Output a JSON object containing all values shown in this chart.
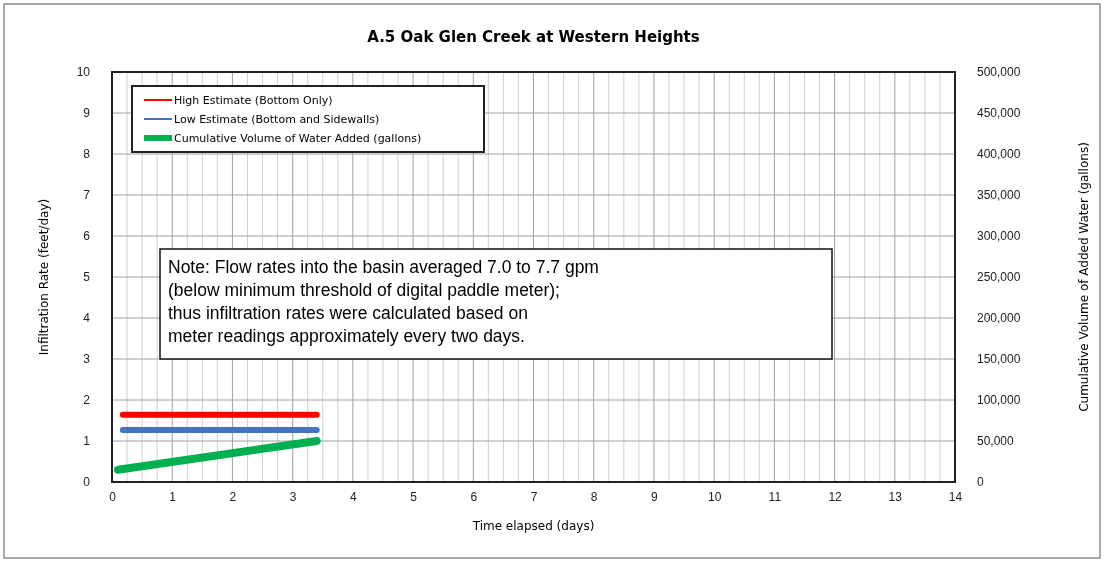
{
  "chart_data": {
    "type": "line",
    "title": "A.5 Oak Glen Creek at Western Heights",
    "xlabel": "Time elapsed (days)",
    "ylabel": "Infiltration Rate (feet/day)",
    "y2label": "Cumulative Volume of Added Water (gallons)",
    "xlim": [
      0,
      14
    ],
    "xticks": [
      0,
      {
        "value": 0.25,
        "label": null
      },
      {
        "value": 0.5,
        "label": null
      },
      {
        "value": 0.75,
        "label": null
      },
      1,
      {
        "value": 1.25,
        "label": null
      },
      {
        "value": 1.5,
        "label": null
      },
      {
        "value": 1.75,
        "label": null
      },
      2,
      {
        "value": 2.25,
        "label": null
      },
      {
        "value": 2.5,
        "label": null
      },
      {
        "value": 2.75,
        "label": null
      },
      3,
      {
        "value": 3.25,
        "label": null
      },
      {
        "value": 3.5,
        "label": null
      },
      {
        "value": 3.75,
        "label": null
      },
      4,
      {
        "value": 4.25,
        "label": null
      },
      {
        "value": 4.5,
        "label": null
      },
      {
        "value": 4.75,
        "label": null
      },
      5,
      {
        "value": 5.25,
        "label": null
      },
      {
        "value": 5.5,
        "label": null
      },
      {
        "value": 5.75,
        "label": null
      },
      6,
      {
        "value": 6.25,
        "label": null
      },
      {
        "value": 6.5,
        "label": null
      },
      {
        "value": 6.75,
        "label": null
      },
      7,
      {
        "value": 7.25,
        "label": null
      },
      {
        "value": 7.5,
        "label": null
      },
      {
        "value": 7.75,
        "label": null
      },
      8,
      {
        "value": 8.25,
        "label": null
      },
      {
        "value": 8.5,
        "label": null
      },
      {
        "value": 8.75,
        "label": null
      },
      9,
      {
        "value": 9.25,
        "label": null
      },
      {
        "value": 9.5,
        "label": null
      },
      {
        "value": 9.75,
        "label": null
      },
      10,
      {
        "value": 10.25,
        "label": null
      },
      {
        "value": 10.5,
        "label": null
      },
      {
        "value": 10.75,
        "label": null
      },
      11,
      {
        "value": 11.25,
        "label": null
      },
      {
        "value": 11.5,
        "label": null
      },
      {
        "value": 11.75,
        "label": null
      },
      12,
      {
        "value": 12.25,
        "label": null
      },
      {
        "value": 12.5,
        "label": null
      },
      {
        "value": 12.75,
        "label": null
      },
      13,
      {
        "value": 13.25,
        "label": null
      },
      {
        "value": 13.5,
        "label": null
      },
      {
        "value": 13.75,
        "label": null
      },
      14
    ],
    "ylim": [
      0,
      10
    ],
    "yticks": [
      0,
      1,
      2,
      3,
      4,
      5,
      6,
      7,
      8,
      9,
      10
    ],
    "y2lim": [
      0,
      500000
    ],
    "y2ticks": [
      0,
      {
        "value": 50000,
        "label": "50,000"
      },
      {
        "value": 100000,
        "label": "100,000"
      },
      {
        "value": 150000,
        "label": "150,000"
      },
      {
        "value": 200000,
        "label": "200,000"
      },
      {
        "value": 250000,
        "label": "250,000"
      },
      {
        "value": 300000,
        "label": "300,000"
      },
      {
        "value": 350000,
        "label": "350,000"
      },
      {
        "value": 400000,
        "label": "400,000"
      },
      {
        "value": 450000,
        "label": "450,000"
      },
      {
        "value": 500000,
        "label": "500,000"
      }
    ],
    "grid": true,
    "legend": "top left",
    "series": [
      {
        "name": "High Estimate (Bottom Only)",
        "color": "#ff0000",
        "x": [
          0.18,
          3.4
        ],
        "values": [
          1.64,
          1.64
        ]
      },
      {
        "name": "Low Estimate (Bottom and Sidewalls)",
        "color": "#4472c4",
        "x": [
          0.18,
          3.4
        ],
        "values": [
          1.27,
          1.27
        ]
      },
      {
        "name": "Cumulative Volume of Water Added (gallons)",
        "color": "#00b050",
        "axis": "y2",
        "x": [
          0.1,
          3.4
        ],
        "values": [
          15000,
          50000
        ]
      }
    ],
    "annotations": [
      "Note: Flow rates into the basin averaged 7.0 to 7.7 gpm\n(below minimum threshold of digital paddle meter);\nthus infiltration rates were calculated based on\nmeter readings approximately every two days."
    ]
  }
}
